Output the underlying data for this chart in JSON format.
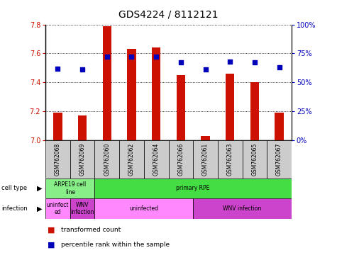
{
  "title": "GDS4224 / 8112121",
  "samples": [
    "GSM762068",
    "GSM762069",
    "GSM762060",
    "GSM762062",
    "GSM762064",
    "GSM762066",
    "GSM762061",
    "GSM762063",
    "GSM762065",
    "GSM762067"
  ],
  "transformed_counts": [
    7.19,
    7.17,
    7.79,
    7.63,
    7.64,
    7.45,
    7.03,
    7.46,
    7.4,
    7.19
  ],
  "percentile_ranks": [
    62,
    61,
    72,
    72,
    72,
    67,
    61,
    68,
    67,
    63
  ],
  "ylim_left": [
    7.0,
    7.8
  ],
  "ylim_right": [
    0,
    100
  ],
  "yticks_left": [
    7.0,
    7.2,
    7.4,
    7.6,
    7.8
  ],
  "yticks_right": [
    0,
    25,
    50,
    75,
    100
  ],
  "ytick_labels_right": [
    "0%",
    "25%",
    "50%",
    "75%",
    "100%"
  ],
  "bar_color": "#CC1100",
  "dot_color": "#0000BB",
  "cell_type_labels": [
    [
      "ARPE19 cell\nline",
      0,
      2
    ],
    [
      "primary RPE",
      2,
      10
    ]
  ],
  "cell_type_colors": [
    "#88EE88",
    "#44DD44"
  ],
  "infection_labels": [
    [
      "uninfect\ned",
      0,
      1
    ],
    [
      "WNV\ninfection",
      1,
      2
    ],
    [
      "uninfected",
      2,
      6
    ],
    [
      "WNV infection",
      6,
      10
    ]
  ],
  "infection_colors": {
    "uninfect\ned": "#FF88FF",
    "WNV\ninfection": "#CC44CC",
    "uninfected": "#FF88FF",
    "WNV infection": "#CC44CC"
  },
  "legend_items": [
    "transformed count",
    "percentile rank within the sample"
  ],
  "bar_width": 0.35,
  "background_color": "#FFFFFF",
  "title_fontsize": 10,
  "tick_fontsize": 7,
  "sample_bg_color": "#CCCCCC"
}
